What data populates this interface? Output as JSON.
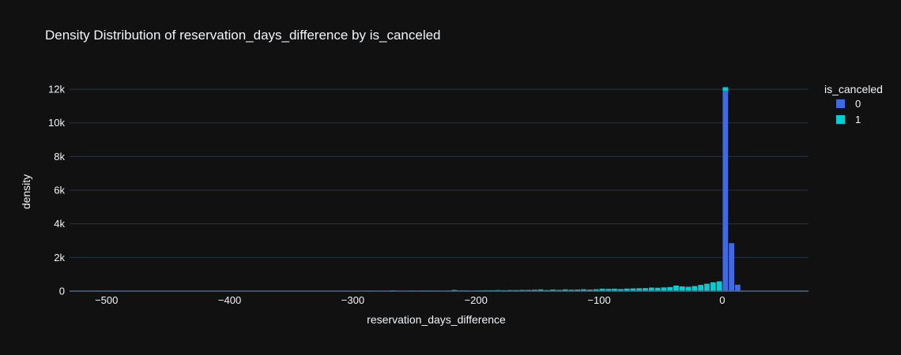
{
  "chart_data": {
    "type": "bar",
    "title": "Density Distribution of reservation_days_difference by is_canceled",
    "xlabel": "reservation_days_difference",
    "ylabel": "density",
    "xlim": [
      -530,
      70
    ],
    "ylim": [
      0,
      12800
    ],
    "x_ticks": [
      -500,
      -400,
      -300,
      -200,
      -100,
      0
    ],
    "x_tick_labels": [
      "−500",
      "−400",
      "−300",
      "−200",
      "−100",
      "0"
    ],
    "y_ticks": [
      0,
      2000,
      4000,
      6000,
      8000,
      10000,
      12000
    ],
    "y_tick_labels": [
      "0",
      "2k",
      "4k",
      "6k",
      "8k",
      "10k",
      "12k"
    ],
    "barmode": "stack",
    "bin_width": 5,
    "grid": true,
    "legend": {
      "title": "is_canceled",
      "placement": "right"
    },
    "series": [
      {
        "name": "0",
        "color": "#4169e1",
        "x": [
          0,
          5,
          10
        ],
        "values": [
          11900,
          2850,
          380
        ]
      },
      {
        "name": "1",
        "color": "#00ced1",
        "x": [
          -5,
          0,
          -10,
          -15,
          -20,
          -25,
          -30,
          -35,
          -40,
          -45,
          -50,
          -55,
          -60,
          -65,
          -70,
          -75,
          -80,
          -85,
          -90,
          -95,
          -100,
          -105,
          -110,
          -115,
          -120,
          -125,
          -130,
          -135,
          -140,
          -145,
          -150,
          -155,
          -160,
          -165,
          -170,
          -175,
          -180,
          -185,
          -190,
          -195,
          -200,
          -205,
          -210,
          -215,
          -220,
          -225,
          -230,
          -235,
          -240,
          -245,
          -250,
          -255,
          -260,
          -265,
          -270,
          -275,
          -280,
          -285,
          -290,
          -295,
          -300,
          -310,
          -320,
          -330,
          -340,
          -350,
          -360,
          -370,
          -380,
          -390,
          -400,
          -420,
          -440,
          -460,
          -480,
          -500
        ],
        "values": [
          580,
          220,
          520,
          440,
          370,
          300,
          260,
          280,
          330,
          240,
          220,
          200,
          210,
          180,
          170,
          160,
          150,
          120,
          140,
          130,
          140,
          110,
          90,
          110,
          90,
          80,
          100,
          70,
          90,
          60,
          100,
          80,
          70,
          70,
          60,
          60,
          50,
          60,
          50,
          50,
          40,
          30,
          40,
          40,
          70,
          30,
          20,
          30,
          30,
          30,
          20,
          30,
          20,
          20,
          40,
          20,
          20,
          20,
          30,
          10,
          20,
          10,
          20,
          10,
          10,
          10,
          10,
          10,
          5,
          5,
          10,
          5,
          5,
          5,
          5,
          5
        ]
      }
    ]
  }
}
